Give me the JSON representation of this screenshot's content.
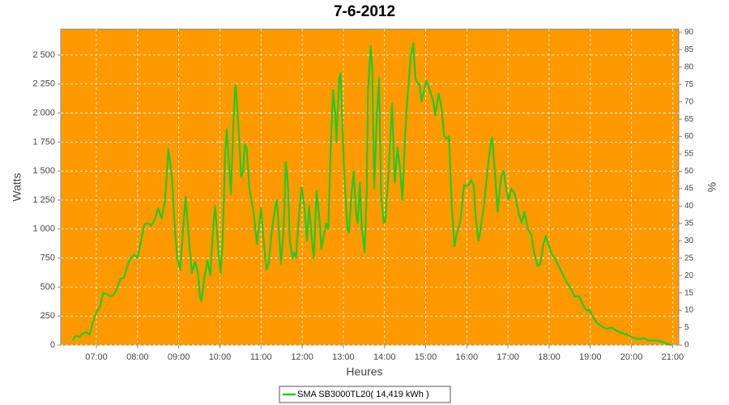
{
  "chart_data": {
    "type": "line",
    "title": "7-6-2012",
    "x_label": "Heures",
    "y_label": "Watts",
    "y2_label": "%",
    "plot_background": "#ff9900",
    "grid": true,
    "legend": "bottom",
    "xlim": [
      "06:08",
      "21:09"
    ],
    "xticks": [
      "07:00",
      "08:00",
      "09:00",
      "10:00",
      "11:00",
      "12:00",
      "13:00",
      "14:00",
      "15:00",
      "16:00",
      "17:00",
      "18:00",
      "19:00",
      "20:00",
      "21:00"
    ],
    "ylim": [
      0,
      2723
    ],
    "yticks": [
      0,
      250,
      500,
      750,
      {
        "value": 1000,
        "label": "1 000"
      },
      {
        "value": 1250,
        "label": "1 250"
      },
      {
        "value": 1500,
        "label": "1 500"
      },
      {
        "value": 1750,
        "label": "1 750"
      },
      {
        "value": 2000,
        "label": "2 000"
      },
      {
        "value": 2250,
        "label": "2 250"
      },
      {
        "value": 2500,
        "label": "2 500"
      }
    ],
    "y2lim": [
      0,
      90.9
    ],
    "y2ticks": [
      0,
      5,
      10,
      15,
      20,
      25,
      30,
      35,
      40,
      45,
      50,
      55,
      60,
      65,
      70,
      75,
      80,
      85,
      90
    ],
    "x": [
      "06:25",
      "06:30",
      "06:35",
      "06:40",
      "06:45",
      "06:50",
      "06:55",
      "07:00",
      "07:05",
      "07:10",
      "07:15",
      "07:20",
      "07:25",
      "07:30",
      "07:35",
      "07:40",
      "07:45",
      "07:50",
      "07:55",
      "08:00",
      "08:05",
      "08:10",
      "08:15",
      "08:20",
      "08:25",
      "08:30",
      "08:35",
      "08:40",
      "08:45",
      "08:50",
      "08:55",
      "08:58",
      "09:02",
      "09:10",
      "09:19",
      "09:24",
      "09:28",
      "09:31",
      "09:33",
      "09:38",
      "09:42",
      "09:46",
      "09:50",
      "09:53",
      "09:58",
      "10:01",
      "10:04",
      "10:08",
      "10:10",
      "10:16",
      "10:19",
      "10:22",
      "10:23",
      "10:27",
      "10:31",
      "10:34",
      "10:36",
      "10:39",
      "10:43",
      "10:49",
      "10:54",
      "11:00",
      "11:03",
      "11:08",
      "11:11",
      "11:16",
      "11:21",
      "11:23",
      "11:27",
      "11:29",
      "11:33",
      "11:36",
      "11:39",
      "11:42",
      "11:46",
      "11:48",
      "11:51",
      "11:55",
      "11:59",
      "12:03",
      "12:07",
      "12:10",
      "12:15",
      "12:17",
      "12:21",
      "12:25",
      "12:28",
      "12:30",
      "12:35",
      "12:38",
      "12:41",
      "12:45",
      "12:48",
      "12:50",
      "12:54",
      "12:56",
      "13:01",
      "13:06",
      "13:08",
      "13:12",
      "13:15",
      "13:19",
      "13:21",
      "13:24",
      "13:27",
      "13:31",
      "13:34",
      "13:36",
      "13:40",
      "13:42",
      "13:45",
      "13:49",
      "13:52",
      "13:55",
      "13:59",
      "14:01",
      "14:06",
      "14:11",
      "14:15",
      "14:19",
      "14:23",
      "14:26",
      "14:30",
      "14:33",
      "14:38",
      "14:42",
      "14:45",
      "14:49",
      "14:51",
      "14:54",
      "14:58",
      "15:01",
      "15:06",
      "15:11",
      "15:14",
      "15:19",
      "15:23",
      "15:27",
      "15:31",
      "15:34",
      "15:38",
      "15:42",
      "15:45",
      "15:50",
      "15:52",
      "15:56",
      "15:59",
      "16:03",
      "16:06",
      "16:10",
      "16:13",
      "16:17",
      "16:20",
      "16:25",
      "16:30",
      "16:35",
      "16:37",
      "16:42",
      "16:45",
      "16:50",
      "16:54",
      "16:57",
      "17:01",
      "17:05",
      "17:10",
      "17:15",
      "17:20",
      "17:24",
      "17:29",
      "17:34",
      "17:38",
      "17:43",
      "17:47",
      "17:51",
      "17:55",
      "18:00",
      "18:04",
      "18:09",
      "18:14",
      "18:19",
      "18:23",
      "18:28",
      "18:33",
      "18:37",
      "18:44",
      "18:49",
      "18:54",
      "18:59",
      "19:05",
      "19:10",
      "19:17",
      "19:24",
      "19:32",
      "19:39",
      "19:48",
      "19:57",
      "20:04",
      "20:11",
      "20:17",
      "20:25",
      "20:35",
      "20:44",
      "20:53",
      "20:58"
    ],
    "series": [
      {
        "name": "SMA SB3000TL20( 14,419 kWh )",
        "color": "#22cc22",
        "values": [
          40,
          80,
          70,
          100,
          110,
          90,
          200,
          280,
          330,
          450,
          440,
          420,
          430,
          490,
          570,
          580,
          680,
          750,
          780,
          750,
          900,
          1040,
          1050,
          1030,
          1080,
          1180,
          1090,
          1250,
          1690,
          1450,
          950,
          750,
          650,
          1280,
          620,
          720,
          620,
          420,
          380,
          600,
          730,
          600,
          1000,
          1200,
          800,
          620,
          900,
          1680,
          1860,
          1300,
          1800,
          2200,
          2240,
          1900,
          1450,
          1500,
          1730,
          1700,
          1350,
          1150,
          870,
          1180,
          950,
          650,
          700,
          1000,
          1200,
          1250,
          900,
          700,
          1000,
          1580,
          1400,
          900,
          750,
          800,
          750,
          1100,
          1360,
          1200,
          900,
          1200,
          850,
          750,
          1330,
          1100,
          830,
          900,
          1050,
          1000,
          1600,
          2200,
          2000,
          1750,
          2300,
          2340,
          1500,
          1000,
          970,
          1300,
          1500,
          1100,
          1050,
          1400,
          1000,
          800,
          1300,
          2200,
          2580,
          2400,
          1350,
          2000,
          2300,
          1300,
          1050,
          1070,
          1500,
          2080,
          1400,
          1700,
          1500,
          1250,
          1800,
          2100,
          2480,
          2600,
          2300,
          2250,
          2250,
          2100,
          2200,
          2280,
          2200,
          2100,
          1980,
          2170,
          2050,
          1800,
          1780,
          1800,
          1200,
          850,
          950,
          1050,
          1150,
          1380,
          1370,
          1380,
          1420,
          1380,
          1100,
          900,
          1000,
          1200,
          1500,
          1750,
          1790,
          1400,
          1150,
          1450,
          1500,
          1350,
          1250,
          1350,
          1300,
          1150,
          1050,
          1150,
          1000,
          950,
          800,
          680,
          700,
          850,
          940,
          850,
          780,
          740,
          680,
          620,
          570,
          520,
          470,
          420,
          420,
          350,
          300,
          300,
          230,
          190,
          160,
          140,
          150,
          120,
          100,
          80,
          60,
          50,
          60,
          40,
          40,
          30,
          10,
          0
        ]
      }
    ]
  }
}
